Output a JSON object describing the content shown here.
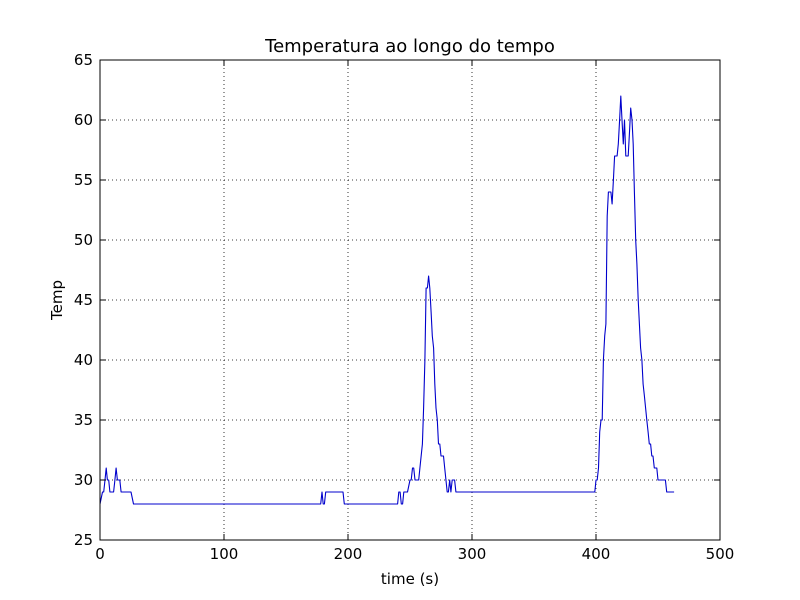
{
  "chart_data": {
    "type": "line",
    "title": "Temperatura ao longo do tempo",
    "xlabel": "time (s)",
    "ylabel": "Temp",
    "xlim": [
      0,
      500
    ],
    "ylim": [
      25,
      65
    ],
    "xticks": [
      0,
      100,
      200,
      300,
      400,
      500
    ],
    "yticks": [
      25,
      30,
      35,
      40,
      45,
      50,
      55,
      60,
      65
    ],
    "grid": true,
    "grid_style": "dotted",
    "series": [
      {
        "color": "#0000cc",
        "x": [
          0,
          2,
          3,
          4,
          5,
          6,
          7,
          8,
          9,
          10,
          11,
          12,
          13,
          14,
          15,
          16,
          17,
          18,
          19,
          20,
          22,
          25,
          27,
          28,
          100,
          150,
          178,
          179,
          180,
          181,
          182,
          183,
          184,
          185,
          196,
          197,
          198,
          240,
          241,
          242,
          243,
          244,
          245,
          246,
          248,
          250,
          251,
          252,
          253,
          254,
          255,
          256,
          257,
          258,
          260,
          261,
          262,
          263,
          264,
          265,
          266,
          267,
          268,
          269,
          270,
          271,
          272,
          273,
          274,
          275,
          276,
          277,
          278,
          280,
          281,
          282,
          283,
          284,
          285,
          286,
          287,
          288,
          289,
          290,
          292,
          293,
          294,
          295,
          300,
          350,
          399,
          400,
          401,
          402,
          403,
          404,
          405,
          406,
          407,
          408,
          409,
          410,
          411,
          412,
          413,
          414,
          415,
          416,
          417,
          418,
          419,
          420,
          421,
          422,
          423,
          424,
          425,
          426,
          427,
          428,
          429,
          430,
          431,
          432,
          433,
          434,
          435,
          436,
          437,
          438,
          439,
          440,
          441,
          442,
          443,
          444,
          445,
          446,
          447,
          448,
          449,
          450,
          452,
          453,
          455,
          456,
          457,
          460,
          463
        ],
        "y": [
          28,
          29,
          29,
          30,
          31,
          30,
          30,
          29,
          29,
          29,
          29,
          30,
          31,
          30,
          30,
          30,
          29,
          29,
          29,
          29,
          29,
          29,
          28,
          28,
          28,
          28,
          28,
          29,
          28,
          28,
          29,
          29,
          29,
          29,
          29,
          28,
          28,
          28,
          29,
          29,
          28,
          28,
          29,
          29,
          29,
          30,
          30,
          31,
          31,
          30,
          30,
          30,
          30,
          31,
          33,
          36,
          40,
          46,
          46,
          47,
          46,
          44,
          42,
          41,
          38,
          36,
          35,
          33,
          33,
          32,
          32,
          32,
          31,
          29,
          29,
          30,
          29,
          30,
          30,
          30,
          29,
          29,
          29,
          29,
          29,
          29,
          29,
          29,
          29,
          29,
          29,
          30,
          30,
          31,
          34,
          35,
          35,
          40,
          42,
          43,
          52,
          54,
          54,
          54,
          53,
          55,
          57,
          57,
          57,
          58,
          60,
          62,
          60,
          58,
          60,
          57,
          57,
          57,
          59,
          61,
          60,
          58,
          54,
          50,
          48,
          45,
          43,
          41,
          40,
          38,
          37,
          36,
          35,
          34,
          33,
          33,
          32,
          32,
          31,
          31,
          31,
          30,
          30,
          30,
          30,
          30,
          29,
          29,
          29
        ]
      }
    ]
  }
}
